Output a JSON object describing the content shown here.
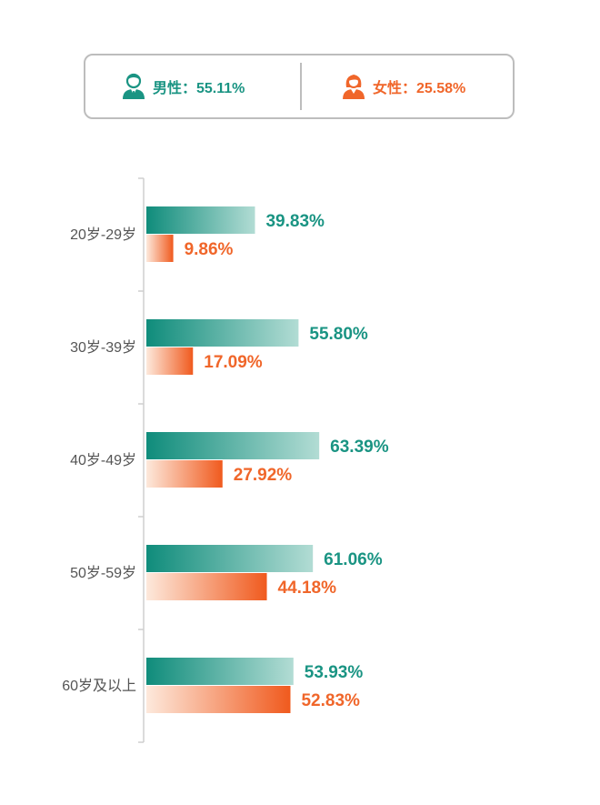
{
  "legend": {
    "male_label": "男性：55.11%",
    "female_label": "女性：25.58%"
  },
  "colors": {
    "male": "#1a9483",
    "female": "#f0662a",
    "axis": "#cfcfcf",
    "category_text": "#555555"
  },
  "chart_data": {
    "type": "bar",
    "orientation": "horizontal",
    "categories": [
      "20岁-29岁",
      "30岁-39岁",
      "40岁-49岁",
      "50岁-59岁",
      "60岁及以上"
    ],
    "series": [
      {
        "name": "男性",
        "values": [
          39.83,
          55.8,
          63.39,
          61.06,
          53.93
        ],
        "labels": [
          "39.83%",
          "55.80%",
          "63.39%",
          "61.06%",
          "53.93%"
        ]
      },
      {
        "name": "女性",
        "values": [
          9.86,
          17.09,
          27.92,
          44.18,
          52.83
        ],
        "labels": [
          "9.86%",
          "17.09%",
          "27.92%",
          "44.18%",
          "52.83%"
        ]
      }
    ],
    "xlim": [
      0,
      100
    ],
    "grid": false,
    "legend_position": "top"
  }
}
